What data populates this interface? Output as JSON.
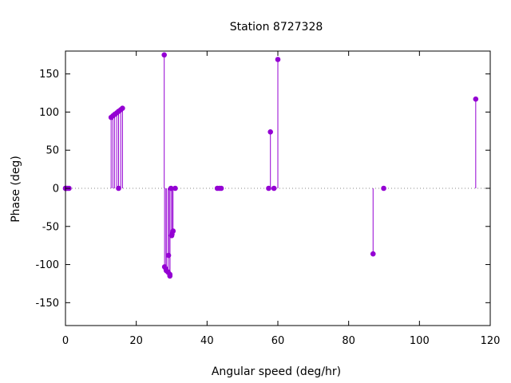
{
  "chart_data": {
    "type": "scatter",
    "style": "impulses",
    "title": "Station 8727328",
    "xlabel": "Angular speed (deg/hr)",
    "ylabel": "Phase (deg)",
    "xlim": [
      0,
      120
    ],
    "ylim": [
      -180,
      180
    ],
    "xticks": [
      0,
      20,
      40,
      60,
      80,
      100,
      120
    ],
    "yticks": [
      -150,
      -100,
      -50,
      0,
      50,
      100,
      150
    ],
    "zero_line": "dotted",
    "grid": false,
    "legend": "none",
    "color": "#9400d3",
    "points": [
      {
        "x": 0.0,
        "y": 0
      },
      {
        "x": 0.04,
        "y": 0
      },
      {
        "x": 0.08,
        "y": 0
      },
      {
        "x": 0.5,
        "y": 0
      },
      {
        "x": 1.0,
        "y": 0
      },
      {
        "x": 12.9,
        "y": 93
      },
      {
        "x": 13.4,
        "y": 95
      },
      {
        "x": 13.9,
        "y": 97
      },
      {
        "x": 14.5,
        "y": 99
      },
      {
        "x": 15.0,
        "y": 101
      },
      {
        "x": 15.0,
        "y": 0
      },
      {
        "x": 15.6,
        "y": 103
      },
      {
        "x": 16.1,
        "y": 105
      },
      {
        "x": 27.9,
        "y": 175
      },
      {
        "x": 28.0,
        "y": -103
      },
      {
        "x": 28.4,
        "y": -106
      },
      {
        "x": 28.5,
        "y": -108
      },
      {
        "x": 29.0,
        "y": -110
      },
      {
        "x": 29.1,
        "y": -88
      },
      {
        "x": 29.5,
        "y": -113
      },
      {
        "x": 29.5,
        "y": -115
      },
      {
        "x": 29.8,
        "y": 0
      },
      {
        "x": 30.0,
        "y": -62
      },
      {
        "x": 30.1,
        "y": -60
      },
      {
        "x": 30.4,
        "y": -56
      },
      {
        "x": 31.0,
        "y": 0
      },
      {
        "x": 42.9,
        "y": 0
      },
      {
        "x": 43.5,
        "y": 0
      },
      {
        "x": 44.0,
        "y": 0
      },
      {
        "x": 57.4,
        "y": 0
      },
      {
        "x": 57.9,
        "y": 74
      },
      {
        "x": 58.9,
        "y": 0
      },
      {
        "x": 60.0,
        "y": 169
      },
      {
        "x": 86.9,
        "y": -86
      },
      {
        "x": 89.9,
        "y": 0
      },
      {
        "x": 115.9,
        "y": 117
      }
    ]
  }
}
